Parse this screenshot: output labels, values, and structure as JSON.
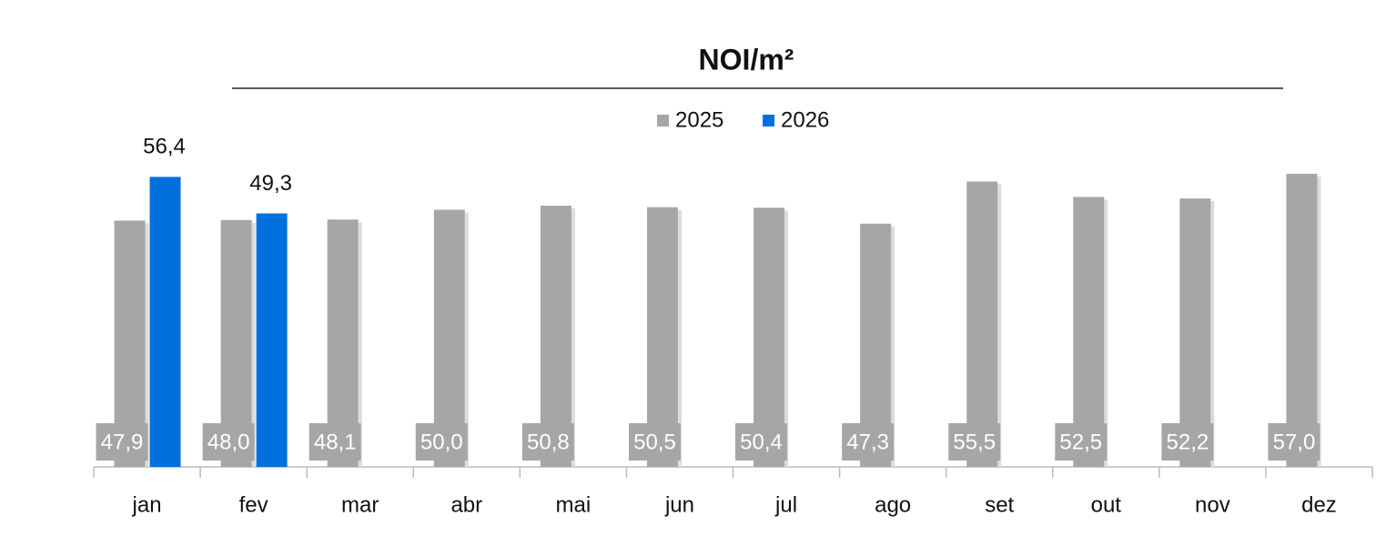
{
  "chart_data": {
    "type": "bar",
    "title": "NOI/m²",
    "categories": [
      "jan",
      "fev",
      "mar",
      "abr",
      "mai",
      "jun",
      "jul",
      "ago",
      "set",
      "out",
      "nov",
      "dez"
    ],
    "series": [
      {
        "name": "2025",
        "color": "#a6a6a6",
        "values": [
          47.9,
          48.0,
          48.1,
          50.0,
          50.8,
          50.5,
          50.4,
          47.3,
          55.5,
          52.5,
          52.2,
          57.0
        ],
        "value_labels": [
          "47,9",
          "48,0",
          "48,1",
          "50,0",
          "50,8",
          "50,5",
          "50,4",
          "47,3",
          "55,5",
          "52,5",
          "52,2",
          "57,0"
        ]
      },
      {
        "name": "2026",
        "color": "#0070dd",
        "values": [
          56.4,
          49.3,
          null,
          null,
          null,
          null,
          null,
          null,
          null,
          null,
          null,
          null
        ],
        "value_labels": [
          "56,4",
          "49,3",
          null,
          null,
          null,
          null,
          null,
          null,
          null,
          null,
          null,
          null
        ]
      }
    ],
    "ylim": [
      0,
      60
    ],
    "legend": "top"
  }
}
